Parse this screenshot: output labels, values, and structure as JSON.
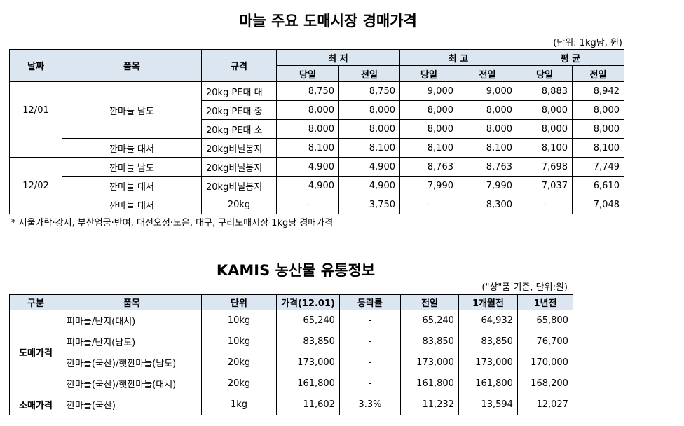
{
  "table1": {
    "title": "마늘 주요 도매시장 경매가격",
    "unit": "(단위: 1kg당, 원)",
    "headers": {
      "date": "날짜",
      "item": "품목",
      "spec": "규격",
      "min": "최 저",
      "max": "최 고",
      "avg": "평 균",
      "today": "당일",
      "prev": "전일"
    },
    "groups": [
      {
        "date": "12/01",
        "rows": [
          {
            "item": "깐마늘 남도",
            "spec": "20kg PE대 대",
            "vals": [
              "8,750",
              "8,750",
              "9,000",
              "9,000",
              "8,883",
              "8,942"
            ]
          },
          {
            "item": "",
            "spec": "20kg PE대 중",
            "vals": [
              "8,000",
              "8,000",
              "8,000",
              "8,000",
              "8,000",
              "8,000"
            ]
          },
          {
            "item": "",
            "spec": "20kg PE대 소",
            "vals": [
              "8,000",
              "8,000",
              "8,000",
              "8,000",
              "8,000",
              "8,000"
            ]
          },
          {
            "item": "깐마늘 대서",
            "spec": "20kg비닐봉지",
            "vals": [
              "8,100",
              "8,100",
              "8,100",
              "8,100",
              "8,100",
              "8,100"
            ]
          }
        ]
      },
      {
        "date": "12/02",
        "rows": [
          {
            "item": "깐마늘 남도",
            "spec": "20kg비닐봉지",
            "vals": [
              "4,900",
              "4,900",
              "8,763",
              "8,763",
              "7,698",
              "7,749"
            ]
          },
          {
            "item": "깐마늘 대서",
            "spec": "20kg비닐봉지",
            "vals": [
              "4,900",
              "4,900",
              "7,990",
              "7,990",
              "7,037",
              "6,610"
            ]
          },
          {
            "item": "깐마늘 대서",
            "spec": "20kg",
            "vals": [
              "-",
              "3,750",
              "-",
              "8,300",
              "-",
              "7,048"
            ]
          }
        ]
      }
    ],
    "footnote": "* 서울가락·강서, 부산엄궁·반여, 대전오정·노은, 대구, 구리도매시장 1kg당 경매가격"
  },
  "table2": {
    "title": "KAMIS 농산물 유통정보",
    "unit": "(\"상\"품 기준, 단위:원)",
    "headers": [
      "구분",
      "품목",
      "단위",
      "가격(12.01)",
      "등락률",
      "전일",
      "1개월전",
      "1년전"
    ],
    "wholesale_label": "도매가격",
    "retail_label": "소매가격",
    "wholesale_rows": [
      {
        "item": "피마늘/난지(대서)",
        "unit": "10kg",
        "price": "65,240",
        "change": "-",
        "prev": "65,240",
        "month": "64,932",
        "year": "65,800"
      },
      {
        "item": "피마늘/난지(남도)",
        "unit": "10kg",
        "price": "83,850",
        "change": "-",
        "prev": "83,850",
        "month": "83,850",
        "year": "76,700"
      },
      {
        "item": "깐마늘(국산)/햇깐마늘(남도)",
        "unit": "20kg",
        "price": "173,000",
        "change": "-",
        "prev": "173,000",
        "month": "173,000",
        "year": "170,000"
      },
      {
        "item": "깐마늘(국산)/햇깐마늘(대서)",
        "unit": "20kg",
        "price": "161,800",
        "change": "-",
        "prev": "161,800",
        "month": "161,800",
        "year": "168,200"
      }
    ],
    "retail_rows": [
      {
        "item": "깐마늘(국산)",
        "unit": "1kg",
        "price": "11,602",
        "change": "3.3%",
        "prev": "11,232",
        "month": "13,594",
        "year": "12,027"
      }
    ]
  }
}
